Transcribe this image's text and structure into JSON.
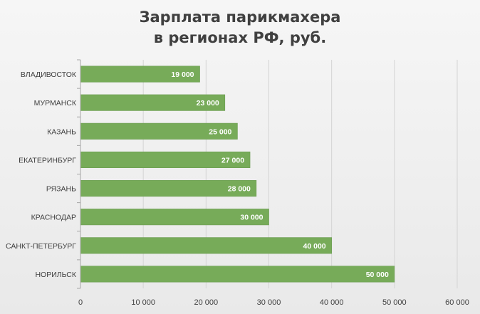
{
  "chart_data": {
    "type": "bar",
    "orientation": "horizontal",
    "title_lines": [
      "Зарплата парикмахера",
      "в регионах РФ, руб."
    ],
    "categories": [
      "ВЛАДИВОСТОК",
      "МУРМАНСК",
      "КАЗАНЬ",
      "ЕКАТЕРИНБУРГ",
      "РЯЗАНЬ",
      "КРАСНОДАР",
      "САНКТ-ПЕТЕРБУРГ",
      "НОРИЛЬСК"
    ],
    "values": [
      19000,
      23000,
      25000,
      27000,
      28000,
      30000,
      40000,
      50000
    ],
    "data_labels": [
      "19 000",
      "23 000",
      "25 000",
      "27 000",
      "28 000",
      "30 000",
      "40 000",
      "50 000"
    ],
    "xlim": [
      0,
      60000
    ],
    "x_ticks": [
      0,
      10000,
      20000,
      30000,
      40000,
      50000,
      60000
    ],
    "x_tick_labels": [
      "0",
      "10 000",
      "20 000",
      "30 000",
      "40 000",
      "50 000",
      "60 000"
    ],
    "xlabel": "",
    "ylabel": "",
    "grid": true,
    "legend": "none",
    "colors": {
      "bar": "#77ab59",
      "bar_border": "#6a9c4f",
      "grid": "#d4d4d4",
      "axis": "#a6a6a6",
      "text": "#404040",
      "data_label": "#ffffff"
    }
  }
}
